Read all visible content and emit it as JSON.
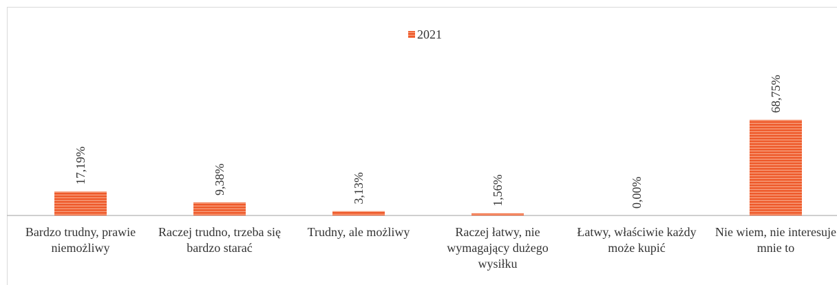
{
  "chart_data": {
    "type": "bar",
    "categories": [
      "Bardzo trudny, prawie niemożliwy",
      "Raczej trudno, trzeba się bardzo starać",
      "Trudny, ale możliwy",
      "Raczej łatwy, nie wymagający dużego wysiłku",
      "Łatwy, właściwie każdy może kupić",
      "Nie wiem, nie interesuje mnie to"
    ],
    "series": [
      {
        "name": "2021",
        "color": "#ee5a2b",
        "values": [
          17.19,
          9.38,
          3.13,
          1.56,
          0,
          68.75
        ],
        "value_labels": [
          "17,19%",
          "9,38%",
          "3,13%",
          "1,56%",
          "0,00%",
          "68,75%"
        ]
      }
    ],
    "legend": "top"
  }
}
